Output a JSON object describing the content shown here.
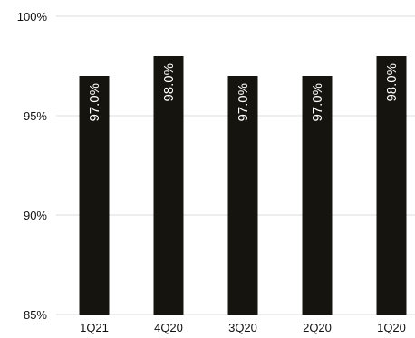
{
  "chart_data": {
    "type": "bar",
    "title": "",
    "xlabel": "",
    "ylabel": "",
    "categories": [
      "1Q21",
      "4Q20",
      "3Q20",
      "2Q20",
      "1Q20"
    ],
    "values": [
      97.0,
      98.0,
      97.0,
      97.0,
      98.0
    ],
    "data_labels": [
      "97.0%",
      "98.0%",
      "97.0%",
      "97.0%",
      "98.0%"
    ],
    "ylim": [
      85,
      100
    ],
    "yticks": [
      85,
      90,
      95,
      100
    ],
    "ytick_labels": [
      "85%",
      "90%",
      "95%",
      "100%"
    ],
    "grid": true,
    "legend": "none",
    "colors": {
      "bar": "#16140f",
      "grid": "#dcdcdc",
      "label_inside": "#ffffff",
      "text": "#111111"
    }
  }
}
